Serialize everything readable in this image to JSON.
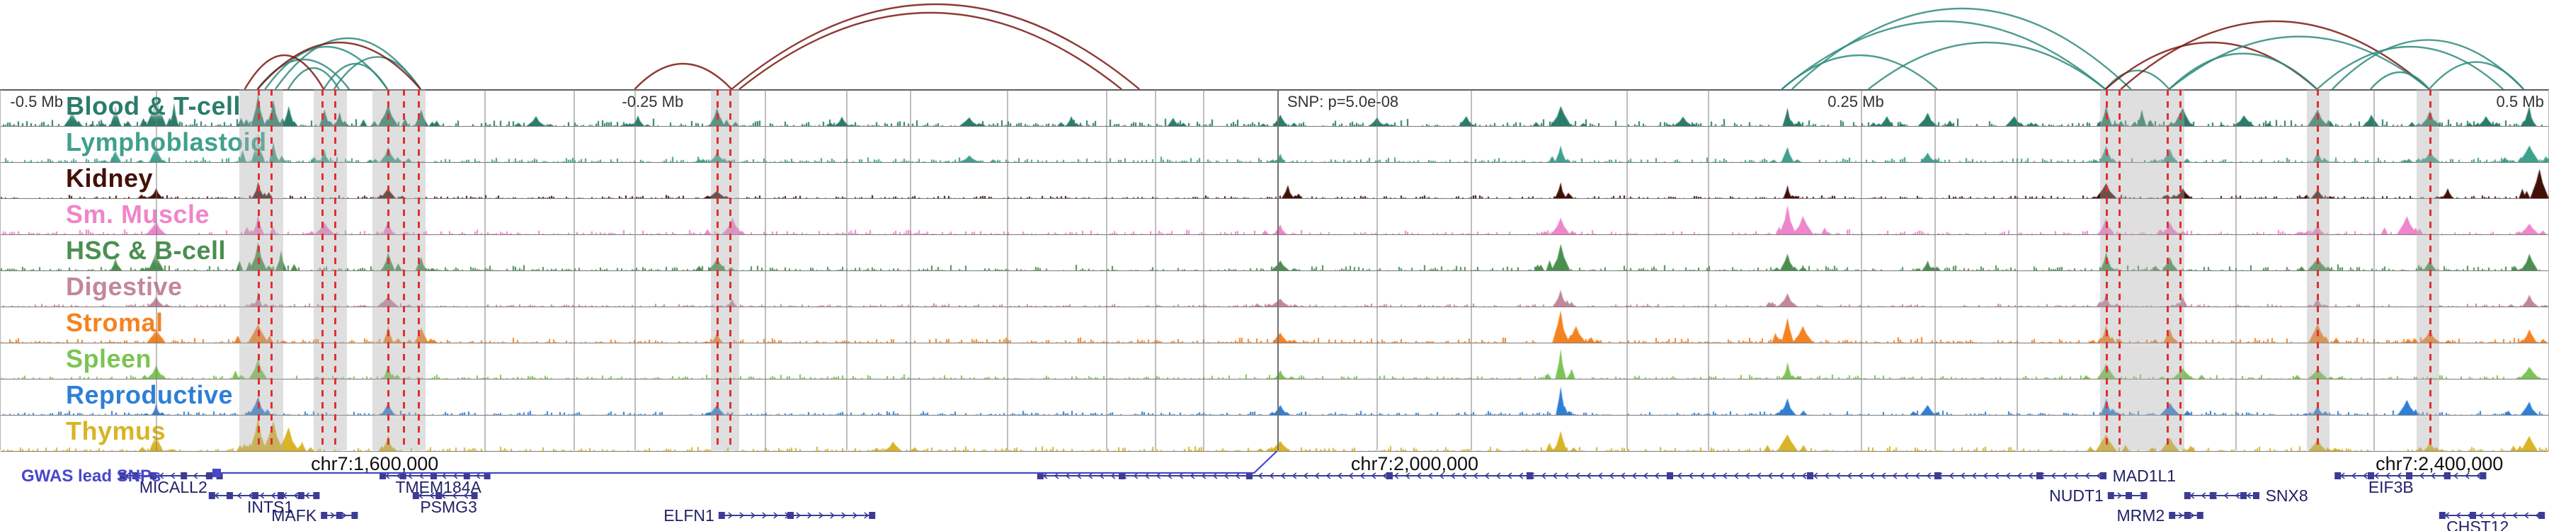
{
  "chart_data": {
    "type": "area",
    "layout": "stacked genome signal tracks with chromatin interaction arcs above, variant highlight lines, and gene annotation track below; x axis spans 1 Mb centered on a GWAS SNP",
    "colors": {
      "arc_teal": "#2f8c7c",
      "arc_red": "#7a1810",
      "red_line": "#e03030",
      "band": "rgba(175,175,175,0.40)",
      "grid": "rgba(125,125,125,0.50)",
      "snp_line": "#6f6f6f",
      "gene": "#3c3c96",
      "gene_label": "#1f1f66",
      "gwas": "#4747c9",
      "ruler_text": "#333333",
      "chr_text": "#111111"
    },
    "ruler": {
      "labels": [
        {
          "text": "-0.5 Mb",
          "x": 0.004,
          "anchor": "left"
        },
        {
          "text": "-0.25 Mb",
          "x": 0.244,
          "anchor": "left"
        },
        {
          "text": "SNP: p=5.0e-08",
          "x": 0.505,
          "anchor": "left"
        },
        {
          "text": "0.25 Mb",
          "x": 0.717,
          "anchor": "left"
        },
        {
          "text": "0.5 Mb",
          "x": 0.998,
          "anchor": "right"
        }
      ]
    },
    "tracks": [
      {
        "label": "Blood & T-cell",
        "color": "#2a7d6a",
        "noise": 0.14,
        "peaks": [
          [
            0.028,
            0.45
          ],
          [
            0.045,
            0.6
          ],
          [
            0.061,
            0.92
          ],
          [
            0.068,
            0.7
          ],
          [
            0.101,
            0.95
          ],
          [
            0.107,
            0.78
          ],
          [
            0.113,
            0.6
          ],
          [
            0.127,
            0.5
          ],
          [
            0.133,
            0.42
          ],
          [
            0.152,
            0.62
          ],
          [
            0.165,
            0.5
          ],
          [
            0.21,
            0.3
          ],
          [
            0.25,
            0.32
          ],
          [
            0.281,
            0.55
          ],
          [
            0.33,
            0.28
          ],
          [
            0.38,
            0.26
          ],
          [
            0.42,
            0.3
          ],
          [
            0.46,
            0.25
          ],
          [
            0.502,
            0.34
          ],
          [
            0.54,
            0.26
          ],
          [
            0.575,
            0.3
          ],
          [
            0.612,
            0.6
          ],
          [
            0.66,
            0.28
          ],
          [
            0.701,
            0.55
          ],
          [
            0.74,
            0.3
          ],
          [
            0.756,
            0.4
          ],
          [
            0.79,
            0.3
          ],
          [
            0.826,
            0.62
          ],
          [
            0.84,
            0.5
          ],
          [
            0.856,
            0.55
          ],
          [
            0.88,
            0.32
          ],
          [
            0.909,
            0.5
          ],
          [
            0.93,
            0.34
          ],
          [
            0.953,
            0.46
          ],
          [
            0.975,
            0.3
          ],
          [
            0.992,
            0.6
          ]
        ]
      },
      {
        "label": "Lymphoblastoid",
        "color": "#3fa08e",
        "noise": 0.1,
        "peaks": [
          [
            0.045,
            0.35
          ],
          [
            0.061,
            0.55
          ],
          [
            0.101,
            0.88
          ],
          [
            0.107,
            0.6
          ],
          [
            0.127,
            0.4
          ],
          [
            0.152,
            0.45
          ],
          [
            0.281,
            0.3
          ],
          [
            0.38,
            0.2
          ],
          [
            0.502,
            0.26
          ],
          [
            0.612,
            0.5
          ],
          [
            0.701,
            0.45
          ],
          [
            0.756,
            0.28
          ],
          [
            0.826,
            0.5
          ],
          [
            0.851,
            0.4
          ],
          [
            0.909,
            0.34
          ],
          [
            0.953,
            0.3
          ],
          [
            0.992,
            0.5
          ]
        ]
      },
      {
        "label": "Kidney",
        "color": "#431008",
        "noise": 0.06,
        "peaks": [
          [
            0.061,
            0.3
          ],
          [
            0.101,
            0.5
          ],
          [
            0.152,
            0.3
          ],
          [
            0.281,
            0.22
          ],
          [
            0.505,
            0.4
          ],
          [
            0.612,
            0.48
          ],
          [
            0.701,
            0.4
          ],
          [
            0.826,
            0.45
          ],
          [
            0.856,
            0.3
          ],
          [
            0.909,
            0.26
          ],
          [
            0.96,
            0.3
          ],
          [
            0.996,
            0.88
          ]
        ]
      },
      {
        "label": "Sm. Muscle",
        "color": "#ef85ca",
        "noise": 0.09,
        "peaks": [
          [
            0.061,
            0.4
          ],
          [
            0.101,
            0.6
          ],
          [
            0.127,
            0.35
          ],
          [
            0.152,
            0.42
          ],
          [
            0.287,
            0.5
          ],
          [
            0.502,
            0.3
          ],
          [
            0.612,
            0.5
          ],
          [
            0.701,
            0.88
          ],
          [
            0.707,
            0.55
          ],
          [
            0.826,
            0.5
          ],
          [
            0.851,
            0.36
          ],
          [
            0.909,
            0.3
          ],
          [
            0.944,
            0.55
          ],
          [
            0.992,
            0.32
          ]
        ]
      },
      {
        "label": "HSC & B-cell",
        "color": "#4a8f4f",
        "noise": 0.11,
        "peaks": [
          [
            0.045,
            0.4
          ],
          [
            0.061,
            0.62
          ],
          [
            0.101,
            0.85
          ],
          [
            0.11,
            0.6
          ],
          [
            0.152,
            0.55
          ],
          [
            0.165,
            0.4
          ],
          [
            0.281,
            0.35
          ],
          [
            0.502,
            0.3
          ],
          [
            0.612,
            0.8
          ],
          [
            0.701,
            0.5
          ],
          [
            0.756,
            0.3
          ],
          [
            0.826,
            0.55
          ],
          [
            0.851,
            0.4
          ],
          [
            0.909,
            0.36
          ],
          [
            0.953,
            0.3
          ],
          [
            0.992,
            0.5
          ]
        ]
      },
      {
        "label": "Digestive",
        "color": "#c2879b",
        "noise": 0.06,
        "peaks": [
          [
            0.061,
            0.3
          ],
          [
            0.101,
            0.45
          ],
          [
            0.152,
            0.3
          ],
          [
            0.287,
            0.22
          ],
          [
            0.502,
            0.24
          ],
          [
            0.612,
            0.5
          ],
          [
            0.701,
            0.4
          ],
          [
            0.826,
            0.42
          ],
          [
            0.856,
            0.3
          ],
          [
            0.909,
            0.24
          ],
          [
            0.992,
            0.36
          ]
        ]
      },
      {
        "label": "Stromal",
        "color": "#f58220",
        "noise": 0.1,
        "peaks": [
          [
            0.061,
            0.42
          ],
          [
            0.101,
            0.55
          ],
          [
            0.152,
            0.52
          ],
          [
            0.165,
            0.45
          ],
          [
            0.281,
            0.3
          ],
          [
            0.502,
            0.3
          ],
          [
            0.612,
            0.97
          ],
          [
            0.618,
            0.5
          ],
          [
            0.701,
            0.75
          ],
          [
            0.707,
            0.5
          ],
          [
            0.826,
            0.55
          ],
          [
            0.851,
            0.42
          ],
          [
            0.909,
            0.56
          ],
          [
            0.953,
            0.36
          ],
          [
            0.992,
            0.4
          ]
        ]
      },
      {
        "label": "Spleen",
        "color": "#7cc455",
        "noise": 0.08,
        "peaks": [
          [
            0.061,
            0.4
          ],
          [
            0.101,
            0.6
          ],
          [
            0.152,
            0.4
          ],
          [
            0.502,
            0.26
          ],
          [
            0.612,
            0.9
          ],
          [
            0.701,
            0.5
          ],
          [
            0.826,
            0.46
          ],
          [
            0.856,
            0.32
          ],
          [
            0.909,
            0.3
          ],
          [
            0.992,
            0.36
          ]
        ]
      },
      {
        "label": "Reproductive",
        "color": "#2e7fd6",
        "noise": 0.08,
        "peaks": [
          [
            0.061,
            0.36
          ],
          [
            0.101,
            0.55
          ],
          [
            0.152,
            0.36
          ],
          [
            0.281,
            0.3
          ],
          [
            0.502,
            0.3
          ],
          [
            0.612,
            0.85
          ],
          [
            0.701,
            0.5
          ],
          [
            0.756,
            0.3
          ],
          [
            0.826,
            0.5
          ],
          [
            0.851,
            0.36
          ],
          [
            0.909,
            0.3
          ],
          [
            0.944,
            0.45
          ],
          [
            0.992,
            0.4
          ]
        ]
      },
      {
        "label": "Thymus",
        "color": "#d9b425",
        "noise": 0.09,
        "peaks": [
          [
            0.061,
            0.5
          ],
          [
            0.101,
            1.0
          ],
          [
            0.107,
            0.9
          ],
          [
            0.113,
            0.72
          ],
          [
            0.152,
            0.5
          ],
          [
            0.35,
            0.28
          ],
          [
            0.502,
            0.3
          ],
          [
            0.612,
            0.6
          ],
          [
            0.701,
            0.5
          ],
          [
            0.826,
            0.5
          ],
          [
            0.851,
            0.4
          ],
          [
            0.909,
            0.36
          ],
          [
            0.953,
            0.3
          ],
          [
            0.992,
            0.45
          ]
        ]
      }
    ],
    "arcs": [
      {
        "x1": 0.101,
        "x2": 0.137,
        "c": "teal",
        "h": 0.35
      },
      {
        "x1": 0.104,
        "x2": 0.152,
        "c": "teal",
        "h": 0.5
      },
      {
        "x1": 0.108,
        "x2": 0.165,
        "c": "teal",
        "h": 0.6
      },
      {
        "x1": 0.113,
        "x2": 0.133,
        "c": "teal",
        "h": 0.25
      },
      {
        "x1": 0.127,
        "x2": 0.152,
        "c": "teal",
        "h": 0.3
      },
      {
        "x1": 0.131,
        "x2": 0.165,
        "c": "teal",
        "h": 0.38
      },
      {
        "x1": 0.096,
        "x2": 0.127,
        "c": "red",
        "h": 0.4
      },
      {
        "x1": 0.101,
        "x2": 0.165,
        "c": "red",
        "h": 0.55
      },
      {
        "x1": 0.249,
        "x2": 0.287,
        "c": "red",
        "h": 0.3
      },
      {
        "x1": 0.287,
        "x2": 0.447,
        "c": "red",
        "h": 1.0
      },
      {
        "x1": 0.29,
        "x2": 0.44,
        "c": "red",
        "h": 0.9
      },
      {
        "x1": 0.699,
        "x2": 0.826,
        "c": "teal",
        "h": 0.8
      },
      {
        "x1": 0.703,
        "x2": 0.836,
        "c": "teal",
        "h": 0.95
      },
      {
        "x1": 0.733,
        "x2": 0.826,
        "c": "teal",
        "h": 0.55
      },
      {
        "x1": 0.699,
        "x2": 0.76,
        "c": "teal",
        "h": 0.4
      },
      {
        "x1": 0.826,
        "x2": 0.851,
        "c": "teal",
        "h": 0.22
      },
      {
        "x1": 0.826,
        "x2": 0.909,
        "c": "red",
        "h": 0.55
      },
      {
        "x1": 0.832,
        "x2": 0.953,
        "c": "red",
        "h": 0.8
      },
      {
        "x1": 0.851,
        "x2": 0.909,
        "c": "teal",
        "h": 0.42
      },
      {
        "x1": 0.851,
        "x2": 0.953,
        "c": "teal",
        "h": 0.62
      },
      {
        "x1": 0.909,
        "x2": 0.982,
        "c": "teal",
        "h": 0.5
      },
      {
        "x1": 0.915,
        "x2": 0.99,
        "c": "teal",
        "h": 0.58
      },
      {
        "x1": 0.953,
        "x2": 0.99,
        "c": "teal",
        "h": 0.32
      },
      {
        "x1": 0.93,
        "x2": 0.953,
        "c": "teal",
        "h": 0.2
      }
    ],
    "overlays": {
      "bands": [
        {
          "x": 0.094,
          "w": 0.017
        },
        {
          "x": 0.123,
          "w": 0.013
        },
        {
          "x": 0.146,
          "w": 0.021
        },
        {
          "x": 0.279,
          "w": 0.011
        },
        {
          "x": 0.824,
          "w": 0.033
        },
        {
          "x": 0.905,
          "w": 0.009
        },
        {
          "x": 0.948,
          "w": 0.009
        }
      ],
      "gray_lines": [
        0.061,
        0.19,
        0.225,
        0.249,
        0.3,
        0.332,
        0.357,
        0.395,
        0.434,
        0.453,
        0.472,
        0.54,
        0.577,
        0.638,
        0.67,
        0.73,
        0.759,
        0.791,
        0.877,
        0.931
      ],
      "red_lines": [
        0.101,
        0.106,
        0.126,
        0.131,
        0.152,
        0.158,
        0.164,
        0.281,
        0.286,
        0.826,
        0.831,
        0.85,
        0.855,
        0.909,
        0.953
      ],
      "snp_line": 0.501
    },
    "genome_labels": [
      {
        "text": "chr7:1,600,000",
        "x": 0.147
      },
      {
        "text": "chr7:2,000,000",
        "x": 0.555
      },
      {
        "text": "chr7:2,400,000",
        "x": 0.957
      }
    ],
    "genes": [
      {
        "name": "MICALL2",
        "row": 0,
        "x1": 0.048,
        "x2": 0.087,
        "strand": "-",
        "label_x": 0.068,
        "label_pos": "below",
        "exons": [
          0.048,
          0.053,
          0.06,
          0.072,
          0.082,
          0.086
        ]
      },
      {
        "name": "TMEM184A",
        "row": 0,
        "x1": 0.15,
        "x2": 0.192,
        "strand": "-",
        "label_x": 0.172,
        "label_pos": "below",
        "exons": [
          0.15,
          0.158,
          0.17,
          0.183,
          0.191
        ]
      },
      {
        "name": "INTS1",
        "row": 1,
        "x1": 0.083,
        "x2": 0.125,
        "strand": "-",
        "label_x": 0.106,
        "label_pos": "below",
        "exons": [
          0.083,
          0.09,
          0.1,
          0.11,
          0.118,
          0.124
        ]
      },
      {
        "name": "PSMG3",
        "row": 1,
        "x1": 0.163,
        "x2": 0.187,
        "strand": "-",
        "label_x": 0.176,
        "label_pos": "below",
        "exons": [
          0.163,
          0.172,
          0.186
        ]
      },
      {
        "name": "MAFK",
        "row": 2,
        "x1": 0.127,
        "x2": 0.14,
        "strand": "+",
        "label_x": 0.118,
        "label_pos": "left",
        "exons": [
          0.127,
          0.133,
          0.139
        ]
      },
      {
        "name": "ELFN1",
        "row": 2,
        "x1": 0.283,
        "x2": 0.343,
        "strand": "+",
        "label_x": 0.272,
        "label_pos": "left",
        "exons": [
          0.283,
          0.31,
          0.342
        ]
      },
      {
        "name": "MAD1L1",
        "row": 0,
        "x1": 0.408,
        "x2": 0.826,
        "strand": "-",
        "label_x": 0.833,
        "label_pos": "right",
        "exons": [
          0.408,
          0.44,
          0.49,
          0.545,
          0.6,
          0.655,
          0.71,
          0.76,
          0.8,
          0.825
        ]
      },
      {
        "name": "NUDT1",
        "row": 1,
        "x1": 0.828,
        "x2": 0.842,
        "strand": "+",
        "label_x": 0.82,
        "label_pos": "left",
        "exons": [
          0.828,
          0.835,
          0.841
        ]
      },
      {
        "name": "MRM2",
        "row": 2,
        "x1": 0.852,
        "x2": 0.864,
        "strand": "+",
        "label_x": 0.843,
        "label_pos": "left",
        "exons": [
          0.852,
          0.858,
          0.863
        ]
      },
      {
        "name": "SNX8",
        "row": 1,
        "x1": 0.858,
        "x2": 0.886,
        "strand": "-",
        "label_x": 0.889,
        "label_pos": "right",
        "exons": [
          0.858,
          0.868,
          0.88,
          0.885
        ]
      },
      {
        "name": "EIF3B",
        "row": 0,
        "x1": 0.917,
        "x2": 0.975,
        "strand": "-",
        "label_x": 0.938,
        "label_pos": "below",
        "exons": [
          0.917,
          0.93,
          0.945,
          0.96,
          0.974
        ]
      },
      {
        "name": "CHST12",
        "row": 2,
        "x1": 0.958,
        "x2": 0.998,
        "strand": "-",
        "label_x": 0.972,
        "label_pos": "below",
        "exons": [
          0.958,
          0.97,
          0.997
        ]
      }
    ],
    "gwas": {
      "label": "GWAS lead SNPs",
      "line_x1": 0.085,
      "line_x2": 0.492,
      "snp_x": 0.501
    }
  }
}
